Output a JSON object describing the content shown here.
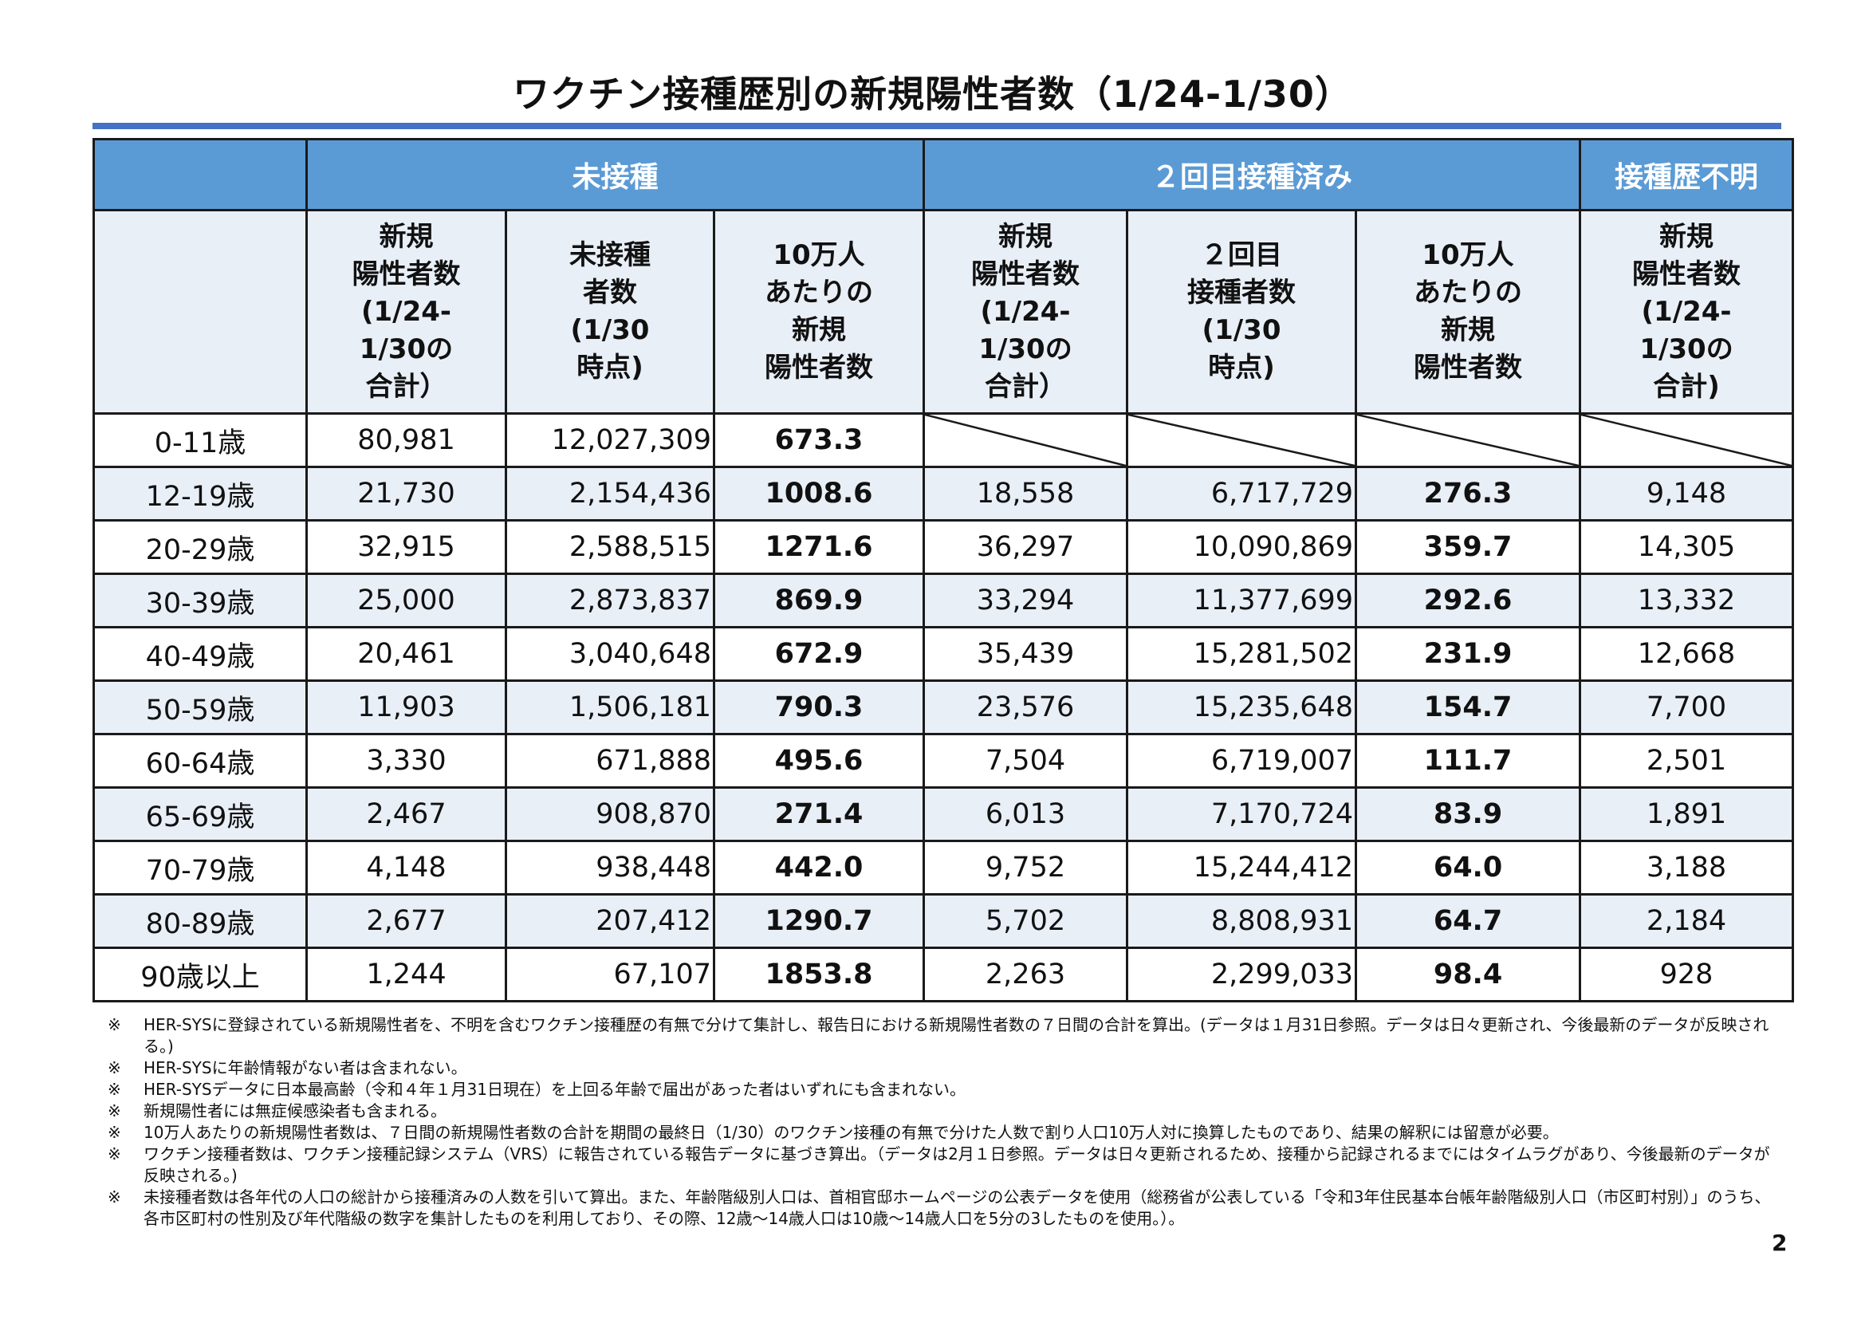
{
  "title": "ワクチン接種歴別の新規陽性者数（1/24-1/30）",
  "colors": {
    "header": "#5B9BD5",
    "subheader": "#E9EFF7",
    "rule": "#4472C4"
  },
  "groups": [
    "未接種",
    "２回目接種済み",
    "接種歴不明"
  ],
  "subheaders": [
    "新規\n陽性者数\n(1/24-\n1/30の\n合計）",
    "未接種\n者数\n(1/30\n時点)",
    "10万人\nあたりの\n新規\n陽性者数",
    "新規\n陽性者数\n(1/24-\n1/30の\n合計）",
    "２回目\n接種者数\n(1/30\n時点)",
    "10万人\nあたりの\n新規\n陽性者数",
    "新規\n陽性者数\n(1/24-\n1/30の\n合計)"
  ],
  "rows": [
    {
      "age": "0-11歳",
      "c": [
        "80,981",
        "12,027,309",
        "673.3",
        null,
        null,
        null,
        null
      ]
    },
    {
      "age": "12-19歳",
      "c": [
        "21,730",
        "2,154,436",
        "1008.6",
        "18,558",
        "6,717,729",
        "276.3",
        "9,148"
      ]
    },
    {
      "age": "20-29歳",
      "c": [
        "32,915",
        "2,588,515",
        "1271.6",
        "36,297",
        "10,090,869",
        "359.7",
        "14,305"
      ]
    },
    {
      "age": "30-39歳",
      "c": [
        "25,000",
        "2,873,837",
        "869.9",
        "33,294",
        "11,377,699",
        "292.6",
        "13,332"
      ]
    },
    {
      "age": "40-49歳",
      "c": [
        "20,461",
        "3,040,648",
        "672.9",
        "35,439",
        "15,281,502",
        "231.9",
        "12,668"
      ]
    },
    {
      "age": "50-59歳",
      "c": [
        "11,903",
        "1,506,181",
        "790.3",
        "23,576",
        "15,235,648",
        "154.7",
        "7,700"
      ]
    },
    {
      "age": "60-64歳",
      "c": [
        "3,330",
        "671,888",
        "495.6",
        "7,504",
        "6,719,007",
        "111.7",
        "2,501"
      ]
    },
    {
      "age": "65-69歳",
      "c": [
        "2,467",
        "908,870",
        "271.4",
        "6,013",
        "7,170,724",
        "83.9",
        "1,891"
      ]
    },
    {
      "age": "70-79歳",
      "c": [
        "4,148",
        "938,448",
        "442.0",
        "9,752",
        "15,244,412",
        "64.0",
        "3,188"
      ]
    },
    {
      "age": "80-89歳",
      "c": [
        "2,677",
        "207,412",
        "1290.7",
        "5,702",
        "8,808,931",
        "64.7",
        "2,184"
      ]
    },
    {
      "age": "90歳以上",
      "c": [
        "1,244",
        "67,107",
        "1853.8",
        "2,263",
        "2,299,033",
        "98.4",
        "928"
      ]
    }
  ],
  "note_mark": "※",
  "notes": [
    "HER-SYSに登録されている新規陽性者を、不明を含むワクチン接種歴の有無で分けて集計し、報告日における新規陽性者数の７日間の合計を算出。(データは１月31日参照。データは日々更新され、今後最新のデータが反映される。)",
    "HER-SYSに年齢情報がない者は含まれない。",
    "HER-SYSデータに日本最高齢（令和４年１月31日現在）を上回る年齢で届出があった者はいずれにも含まれない。",
    "新規陽性者には無症候感染者も含まれる。",
    "10万人あたりの新規陽性者数は、７日間の新規陽性者数の合計を期間の最終日（1/30）のワクチン接種の有無で分けた人数で割り人口10万人対に換算したものであり、結果の解釈には留意が必要。",
    "ワクチン接種者数は、ワクチン接種記録システム（VRS）に報告されている報告データに基づき算出。（データは2月１日参照。データは日々更新されるため、接種から記録されるまでにはタイムラグがあり、今後最新のデータが反映される。)",
    "未接種者数は各年代の人口の総計から接種済みの人数を引いて算出。また、年齢階級別人口は、首相官邸ホームページの公表データを使用（総務省が公表している「令和3年住民基本台帳年齢階級別人口（市区町村別）」のうち、各市区町村の性別及び年代階級の数字を集計したものを利用しており、その際、12歳～14歳人口は10歳～14歳人口を5分の3したものを使用。）。"
  ],
  "page_number": "2"
}
